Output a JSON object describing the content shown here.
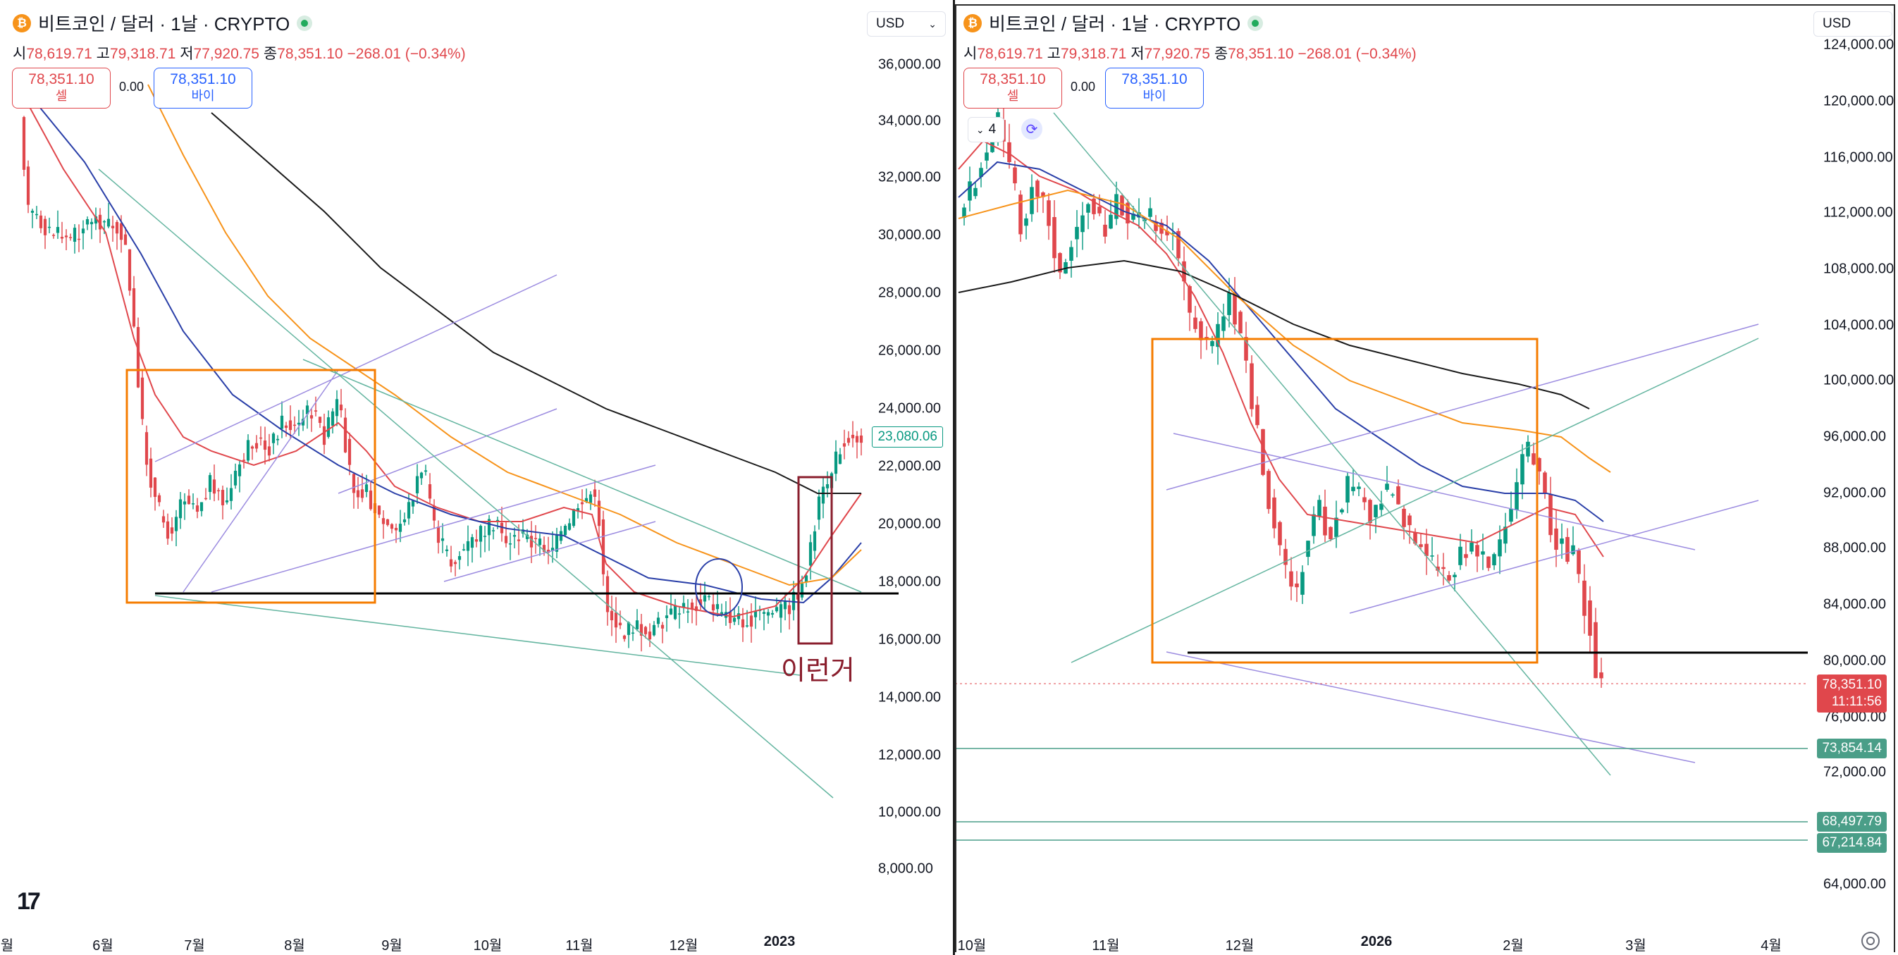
{
  "colors": {
    "bull": "#089981",
    "bear": "#e0474c",
    "ma_short": "#e0474c",
    "ma_mid": "#2a3fa8",
    "ma_long": "#f7931a",
    "ma_200": "#1a1a1a",
    "trend_purple": "#9c8ce0",
    "trend_green": "#64b5a0",
    "box_orange": "#f57c00",
    "annotation_red": "#8a1e2d",
    "circle_blue": "#2a3fa8"
  },
  "left": {
    "title": "비트코인 / 달러 · 1날 · CRYPTO",
    "coin_icon": "bitcoin-icon",
    "ohlc": {
      "o_label": "시",
      "o": "78,619.71",
      "h_label": "고",
      "h": "79,318.71",
      "l_label": "저",
      "l": "77,920.75",
      "c_label": "종",
      "c": "78,351.10",
      "change": "−268.01 (−0.34%)"
    },
    "sell": {
      "price": "78,351.10",
      "label": "셀"
    },
    "spread": "0.00",
    "buy": {
      "price": "78,351.10",
      "label": "바이"
    },
    "currency": "USD",
    "y_ticks": [
      "36,000.00",
      "34,000.00",
      "32,000.00",
      "30,000.00",
      "28,000.00",
      "26,000.00",
      "24,000.00",
      "22,000.00",
      "20,000.00",
      "18,000.00",
      "16,000.00",
      "14,000.00",
      "12,000.00",
      "10,000.00",
      "8,000.00"
    ],
    "x_ticks": [
      "월",
      "6월",
      "7월",
      "8월",
      "9월",
      "10월",
      "11월",
      "12월",
      "2023"
    ],
    "last_price_tag": "23,080.06",
    "annotation": "이런거"
  },
  "right": {
    "title": "비트코인 / 달러 · 1날 · CRYPTO",
    "coin_icon": "bitcoin-icon",
    "ohlc": {
      "o_label": "시",
      "o": "78,619.71",
      "h_label": "고",
      "h": "79,318.71",
      "l_label": "저",
      "l": "77,920.75",
      "c_label": "종",
      "c": "78,351.10",
      "change": "−268.01 (−0.34%)"
    },
    "sell": {
      "price": "78,351.10",
      "label": "셀"
    },
    "spread": "0.00",
    "buy": {
      "price": "78,351.10",
      "label": "바이"
    },
    "currency": "USD",
    "layer_count": "4",
    "y_ticks": [
      "124,000.00",
      "120,000.00",
      "116,000.00",
      "112,000.00",
      "108,000.00",
      "104,000.00",
      "100,000.00",
      "96,000.00",
      "92,000.00",
      "88,000.00",
      "84,000.00",
      "80,000.00",
      "76,000.00",
      "72,000.00",
      "64,000.00"
    ],
    "x_ticks": [
      "10월",
      "11월",
      "12월",
      "2026",
      "2월",
      "3월",
      "4월"
    ],
    "last_price": "78,351.10",
    "countdown": "11:11:56",
    "level_tags": [
      "73,854.14",
      "68,497.79",
      "67,214.84"
    ]
  }
}
